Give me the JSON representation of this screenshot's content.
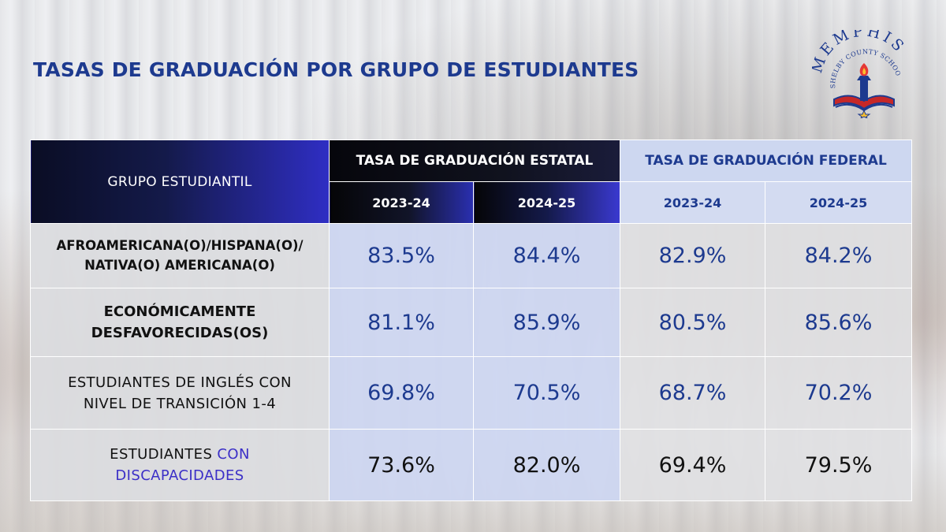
{
  "slide": {
    "title": "TASAS DE GRADUACIÓN POR GRUPO DE ESTUDIANTES"
  },
  "logo": {
    "text_top": "MEMPHIS",
    "text_arc": "SHELBY COUNTY SCHOOLS"
  },
  "table": {
    "group_header": "GRUPO ESTUDIANTIL",
    "state_header": "TASA DE GRADUACIÓN ESTATAL",
    "federal_header": "TASA DE GRADUACIÓN FEDERAL",
    "years": [
      "2023-24",
      "2024-25",
      "2023-24",
      "2024-25"
    ],
    "rows": [
      {
        "label_line1": "AFROAMERICANA(O)/HISPANA(O)/",
        "label_line2": "NATIVA(O) AMERICANA(O)",
        "values": [
          "83.5%",
          "84.4%",
          "82.9%",
          "84.2%"
        ]
      },
      {
        "label_line1": "ECONÓMICAMENTE",
        "label_line2": "DESFAVORECIDAS(OS)",
        "values": [
          "81.1%",
          "85.9%",
          "80.5%",
          "85.6%"
        ]
      },
      {
        "label_line1": "ESTUDIANTES DE INGLÉS CON",
        "label_line2": "NIVEL DE TRANSICIÓN 1-4",
        "values": [
          "69.8%",
          "70.5%",
          "68.7%",
          "70.2%"
        ]
      },
      {
        "label_line1a": "ESTUDIANTES",
        "label_line1b": " CON",
        "label_line2": "DISCAPACIDADES",
        "values": [
          "73.6%",
          "82.0%",
          "69.4%",
          "79.5%"
        ]
      }
    ]
  },
  "colors": {
    "title_blue": "#1d3a8f",
    "header_dark": "#0a0d24",
    "header_purple": "#2f2ec4",
    "federal_bg": "#cdd7f0"
  }
}
